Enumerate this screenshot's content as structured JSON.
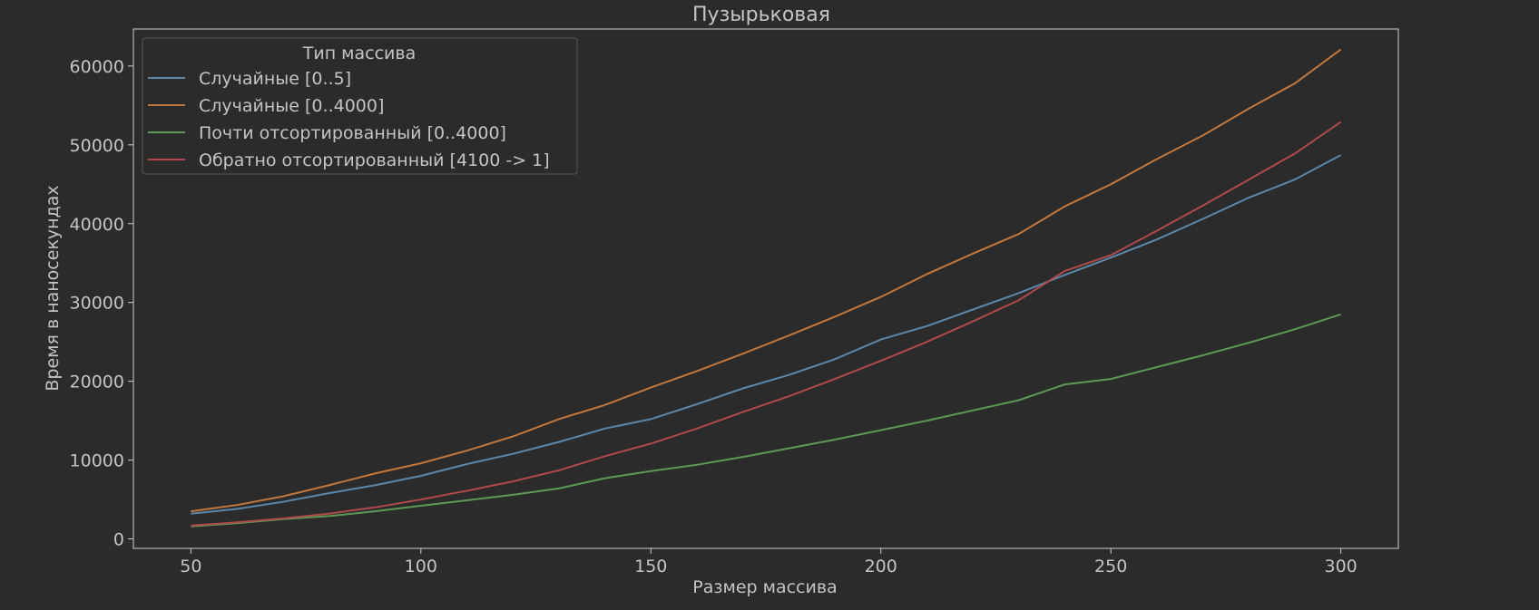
{
  "chart_data": {
    "type": "line",
    "title": "Пузырьковая",
    "xlabel": "Размер массива",
    "ylabel": "Время в наносекундах",
    "xlim": [
      37.5,
      312.5
    ],
    "ylim": [
      -1200,
      64700
    ],
    "xticks": [
      50,
      100,
      150,
      200,
      250,
      300
    ],
    "yticks": [
      0,
      10000,
      20000,
      30000,
      40000,
      50000,
      60000
    ],
    "grid": false,
    "legend": {
      "title": "Тип массива",
      "placement": "top-left"
    },
    "x": [
      50,
      60,
      70,
      80,
      90,
      100,
      110,
      120,
      130,
      140,
      150,
      160,
      170,
      180,
      190,
      200,
      210,
      220,
      230,
      240,
      250,
      260,
      270,
      280,
      290,
      300
    ],
    "series": [
      {
        "name": "Случайные [0..5]",
        "color": "#5b87ab",
        "values": [
          3200,
          3800,
          4700,
          5800,
          6800,
          8000,
          9500,
          10800,
          12300,
          14000,
          15200,
          17100,
          19100,
          20800,
          22800,
          25300,
          27000,
          29100,
          31200,
          33500,
          35700,
          38000,
          40600,
          43300,
          45600,
          48700
        ]
      },
      {
        "name": "Случайные [0..4000]",
        "color": "#c2773c",
        "values": [
          3500,
          4300,
          5400,
          6800,
          8300,
          9600,
          11200,
          13000,
          15200,
          17000,
          19200,
          21300,
          23500,
          25800,
          28200,
          30700,
          33600,
          36200,
          38700,
          42200,
          45000,
          48200,
          51200,
          54600,
          57800,
          62100
        ]
      },
      {
        "name": "Почти отсортированный [0..4000]",
        "color": "#5b9a53",
        "values": [
          1600,
          2000,
          2500,
          2900,
          3500,
          4200,
          4900,
          5600,
          6400,
          7700,
          8600,
          9400,
          10400,
          11500,
          12600,
          13800,
          15000,
          16300,
          17600,
          19600,
          20300,
          21800,
          23300,
          24900,
          26600,
          28500
        ]
      },
      {
        "name": "Обратно отсортированный [4100 -> 1]",
        "color": "#b04a4a",
        "values": [
          1700,
          2100,
          2600,
          3200,
          4000,
          5000,
          6100,
          7300,
          8700,
          10500,
          12100,
          14000,
          16100,
          18100,
          20300,
          22600,
          25000,
          27600,
          30300,
          34000,
          36000,
          39100,
          42300,
          45600,
          48900,
          52900
        ]
      }
    ]
  }
}
